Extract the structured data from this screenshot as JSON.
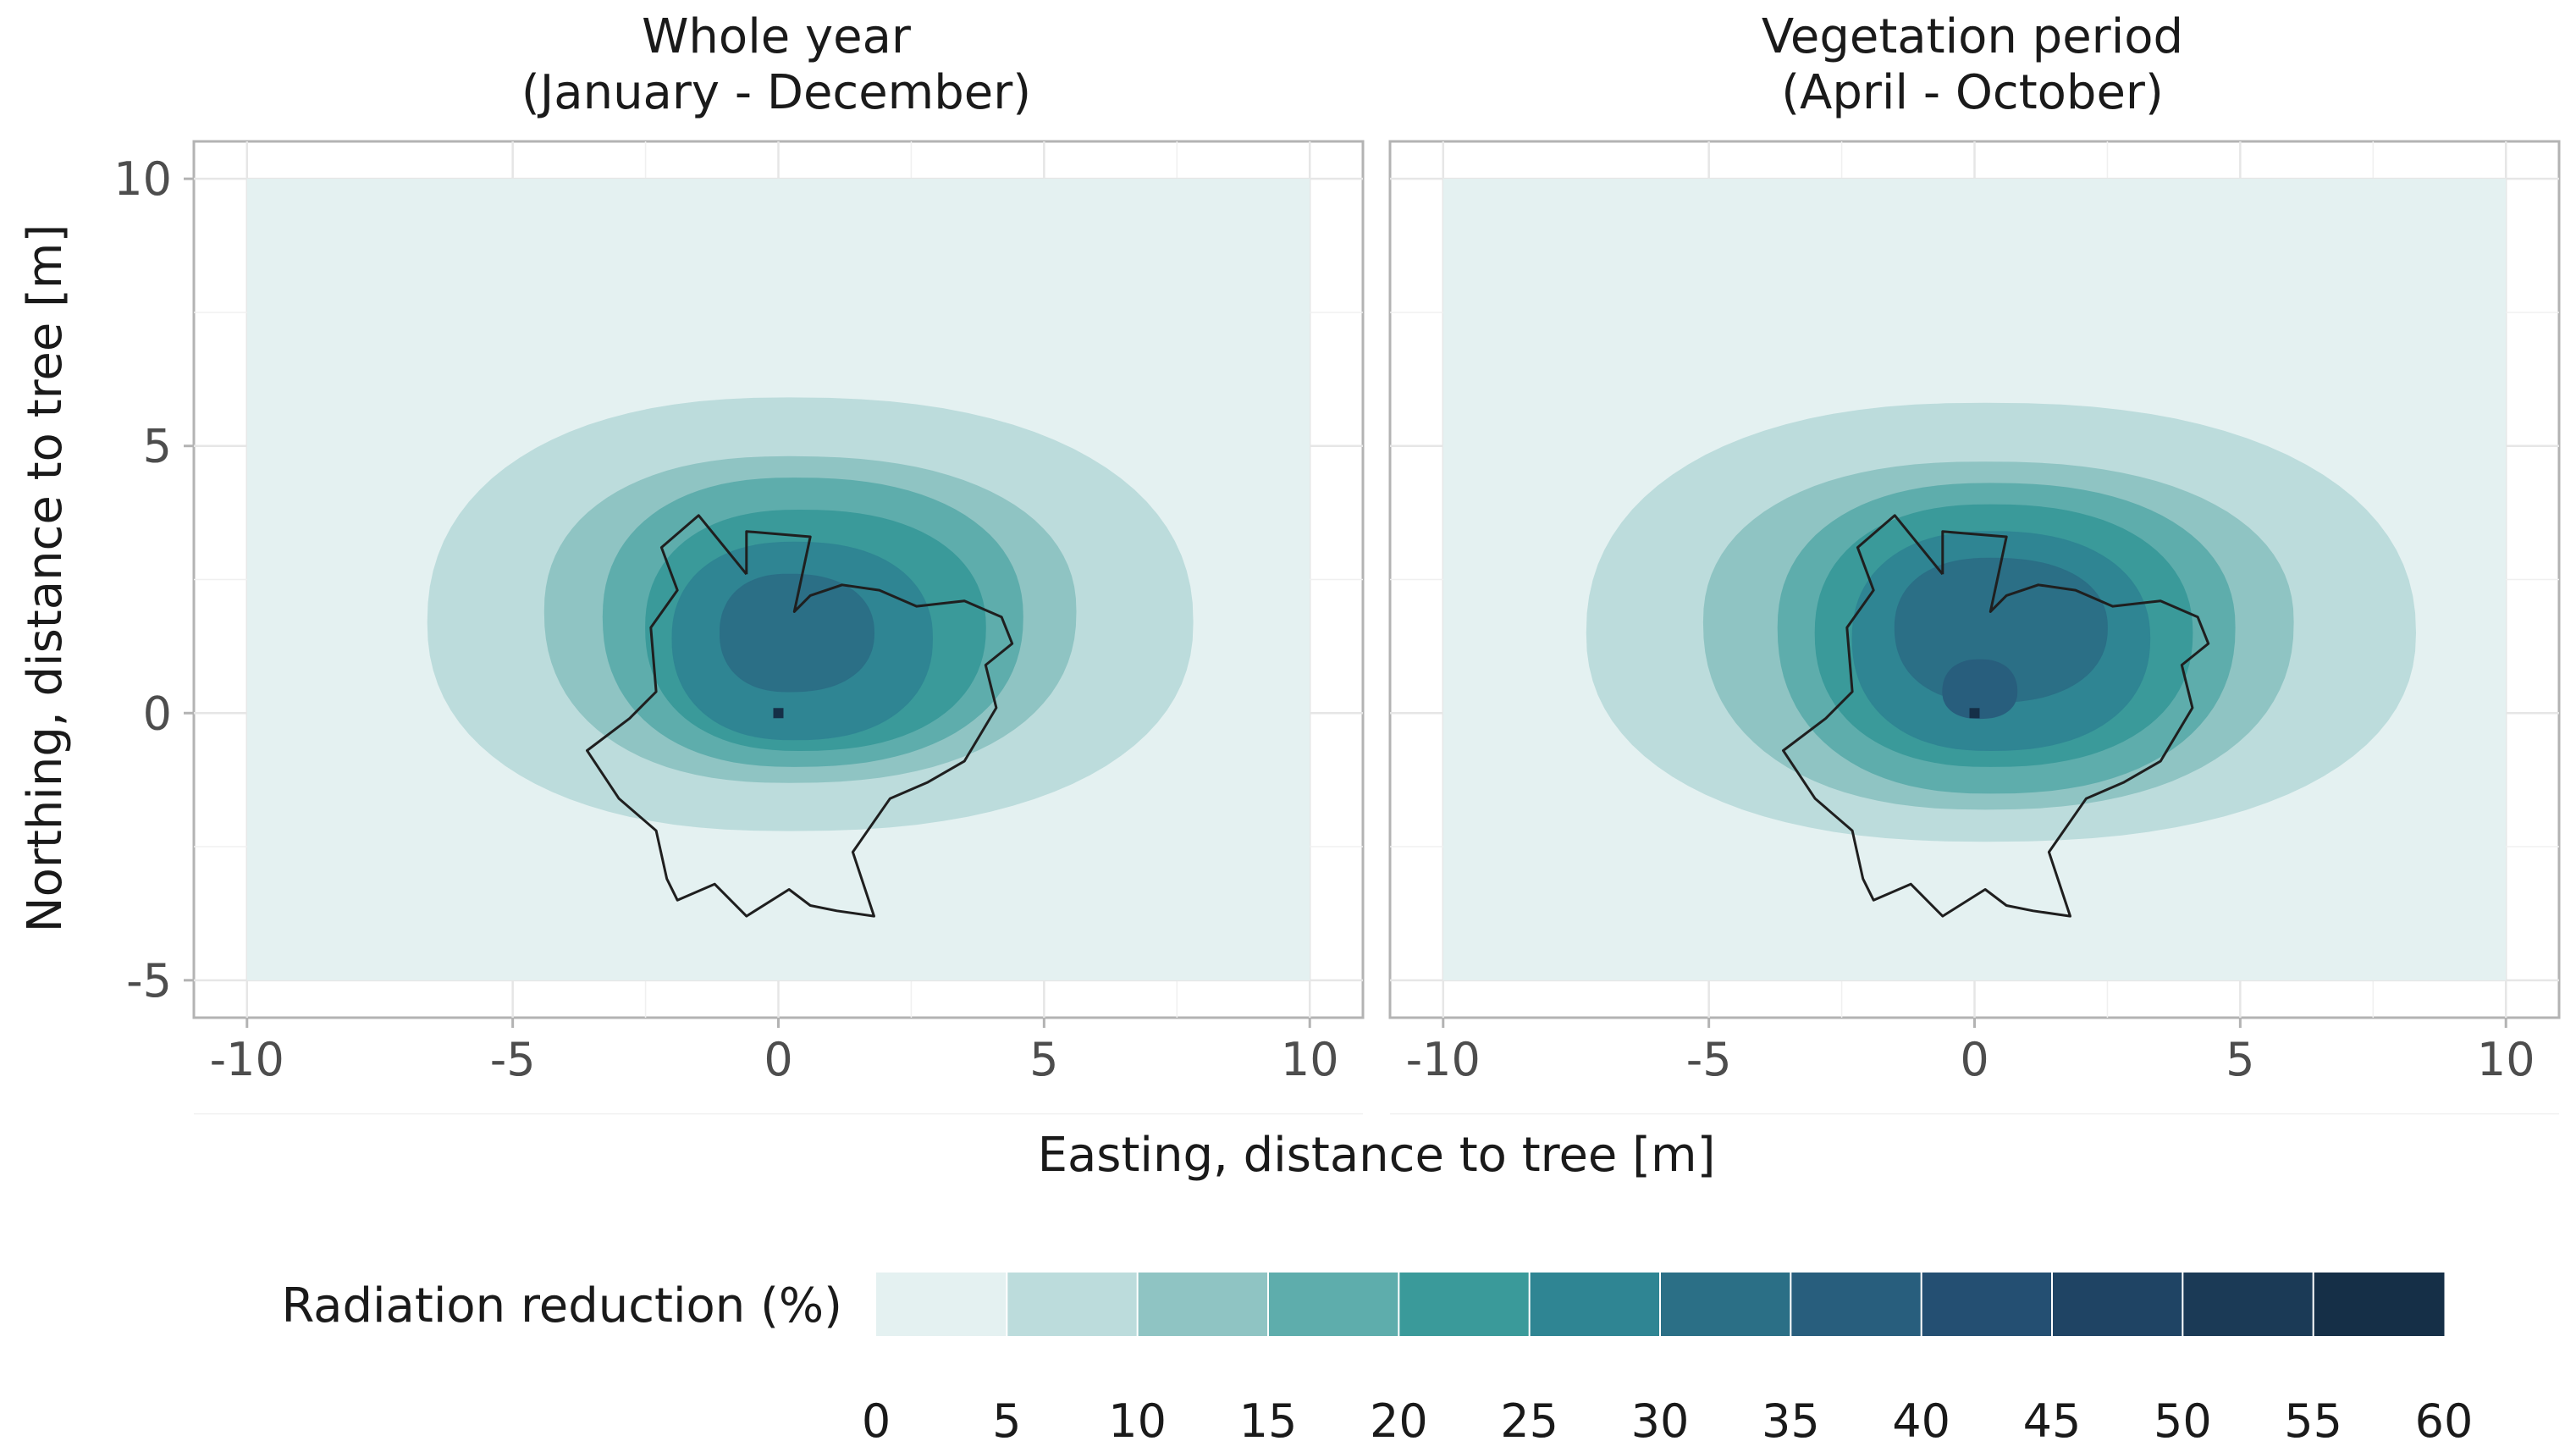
{
  "chart_data": {
    "type": "heatmap",
    "xlabel": "Easting, distance to tree [m]",
    "ylabel": "Northing, distance to tree [m]",
    "xlim": [
      -11,
      11
    ],
    "ylim": [
      -5.7,
      10.7
    ],
    "x_ticks": [
      "-10",
      "-5",
      "0",
      "5",
      "10"
    ],
    "y_ticks": [
      "-5",
      "0",
      "5",
      "10"
    ],
    "grid": true,
    "panels": [
      {
        "title_line1": "Whole year",
        "title_line2": "(January - December)",
        "tree": [
          0,
          0
        ],
        "zones": [
          {
            "level": 5,
            "cx": 0.2,
            "cy": 1.7,
            "rx_e": 7.6,
            "rx_w": 6.8,
            "ry_n": 4.2,
            "ry_s": 3.9
          },
          {
            "level": 10,
            "cx": 0.2,
            "cy": 1.9,
            "rx_e": 5.4,
            "rx_w": 4.6,
            "ry_n": 2.9,
            "ry_s": 3.2
          },
          {
            "level": 15,
            "cx": 0.3,
            "cy": 1.8,
            "rx_e": 4.3,
            "rx_w": 3.6,
            "ry_n": 2.6,
            "ry_s": 2.8
          },
          {
            "level": 20,
            "cx": 0.4,
            "cy": 1.6,
            "rx_e": 3.5,
            "rx_w": 2.9,
            "ry_n": 2.2,
            "ry_s": 2.3
          },
          {
            "level": 25,
            "cx": 0.3,
            "cy": 1.4,
            "rx_e": 2.6,
            "rx_w": 2.3,
            "ry_n": 1.8,
            "ry_s": 1.9
          },
          {
            "level": 30,
            "cx": 0.2,
            "cy": 1.5,
            "rx_e": 1.6,
            "rx_w": 1.3,
            "ry_n": 1.1,
            "ry_s": 1.1
          }
        ],
        "crown_outline": [
          [
            -0.6,
            2.6
          ],
          [
            -1.5,
            3.7
          ],
          [
            -2.2,
            3.1
          ],
          [
            -1.9,
            2.3
          ],
          [
            -2.4,
            1.6
          ],
          [
            -2.3,
            0.4
          ],
          [
            -2.8,
            -0.1
          ],
          [
            -3.6,
            -0.7
          ],
          [
            -3.0,
            -1.6
          ],
          [
            -2.3,
            -2.2
          ],
          [
            -2.1,
            -3.1
          ],
          [
            -1.9,
            -3.5
          ],
          [
            -1.2,
            -3.2
          ],
          [
            -0.6,
            -3.8
          ],
          [
            0.2,
            -3.3
          ],
          [
            0.6,
            -3.6
          ],
          [
            1.1,
            -3.7
          ],
          [
            1.8,
            -3.8
          ],
          [
            1.4,
            -2.6
          ],
          [
            2.1,
            -1.6
          ],
          [
            2.8,
            -1.3
          ],
          [
            3.5,
            -0.9
          ],
          [
            4.1,
            0.1
          ],
          [
            3.9,
            0.9
          ],
          [
            4.4,
            1.3
          ],
          [
            4.2,
            1.8
          ],
          [
            3.5,
            2.1
          ],
          [
            2.6,
            2.0
          ],
          [
            1.9,
            2.3
          ],
          [
            1.2,
            2.4
          ],
          [
            0.6,
            2.2
          ],
          [
            0.3,
            1.9
          ],
          [
            0.6,
            3.3
          ],
          [
            -0.6,
            3.4
          ],
          [
            -0.6,
            2.6
          ]
        ]
      },
      {
        "title_line1": "Vegetation period",
        "title_line2": "(April - October)",
        "tree": [
          0,
          0
        ],
        "zones": [
          {
            "level": 5,
            "cx": 0.2,
            "cy": 1.5,
            "rx_e": 8.1,
            "rx_w": 7.5,
            "ry_n": 4.3,
            "ry_s": 3.9
          },
          {
            "level": 10,
            "cx": 0.2,
            "cy": 1.7,
            "rx_e": 5.8,
            "rx_w": 5.3,
            "ry_n": 3.0,
            "ry_s": 3.5
          },
          {
            "level": 15,
            "cx": 0.3,
            "cy": 1.6,
            "rx_e": 4.6,
            "rx_w": 4.0,
            "ry_n": 2.7,
            "ry_s": 3.1
          },
          {
            "level": 20,
            "cx": 0.3,
            "cy": 1.5,
            "rx_e": 3.8,
            "rx_w": 3.3,
            "ry_n": 2.4,
            "ry_s": 2.5
          },
          {
            "level": 25,
            "cx": 0.3,
            "cy": 1.4,
            "rx_e": 3.0,
            "rx_w": 2.6,
            "ry_n": 2.0,
            "ry_s": 2.1
          },
          {
            "level": 30,
            "cx": 0.3,
            "cy": 1.6,
            "rx_e": 2.2,
            "rx_w": 1.8,
            "ry_n": 1.3,
            "ry_s": 1.4
          },
          {
            "level": 35,
            "cx": 0.1,
            "cy": 0.4,
            "rx_e": 0.7,
            "rx_w": 0.7,
            "ry_n": 0.6,
            "ry_s": 0.5
          }
        ],
        "crown_outline": [
          [
            -0.6,
            2.6
          ],
          [
            -1.5,
            3.7
          ],
          [
            -2.2,
            3.1
          ],
          [
            -1.9,
            2.3
          ],
          [
            -2.4,
            1.6
          ],
          [
            -2.3,
            0.4
          ],
          [
            -2.8,
            -0.1
          ],
          [
            -3.6,
            -0.7
          ],
          [
            -3.0,
            -1.6
          ],
          [
            -2.3,
            -2.2
          ],
          [
            -2.1,
            -3.1
          ],
          [
            -1.9,
            -3.5
          ],
          [
            -1.2,
            -3.2
          ],
          [
            -0.6,
            -3.8
          ],
          [
            0.2,
            -3.3
          ],
          [
            0.6,
            -3.6
          ],
          [
            1.1,
            -3.7
          ],
          [
            1.8,
            -3.8
          ],
          [
            1.4,
            -2.6
          ],
          [
            2.1,
            -1.6
          ],
          [
            2.8,
            -1.3
          ],
          [
            3.5,
            -0.9
          ],
          [
            4.1,
            0.1
          ],
          [
            3.9,
            0.9
          ],
          [
            4.4,
            1.3
          ],
          [
            4.2,
            1.8
          ],
          [
            3.5,
            2.1
          ],
          [
            2.6,
            2.0
          ],
          [
            1.9,
            2.3
          ],
          [
            1.2,
            2.4
          ],
          [
            0.6,
            2.2
          ],
          [
            0.3,
            1.9
          ],
          [
            0.6,
            3.3
          ],
          [
            -0.6,
            3.4
          ],
          [
            -0.6,
            2.6
          ]
        ]
      }
    ],
    "data_extent": {
      "x": [
        -10,
        10
      ],
      "y": [
        -5,
        10
      ]
    },
    "legend": {
      "title": "Radiation reduction (%)",
      "breaks": [
        "0",
        "5",
        "10",
        "15",
        "20",
        "25",
        "30",
        "35",
        "40",
        "45",
        "50",
        "55",
        "60"
      ],
      "colors": [
        "#e4f1f1",
        "#bcdcdc",
        "#8fc4c3",
        "#5eadac",
        "#3a9a9a",
        "#2f8593",
        "#2b6f86",
        "#285e7d",
        "#244f72",
        "#1f4464",
        "#1b3a56",
        "#152f47"
      ]
    }
  }
}
